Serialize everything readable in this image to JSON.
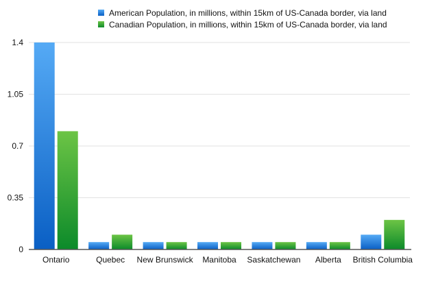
{
  "chart_data": {
    "type": "bar",
    "title": "",
    "xlabel": "",
    "ylabel": "",
    "categories": [
      "Ontario",
      "Quebec",
      "New Brunswick",
      "Manitoba",
      "Saskatchewan",
      "Alberta",
      "British Columbia"
    ],
    "series": [
      {
        "name": "American Population, in millions, within 15km of US-Canada border, via land",
        "color": "#2f7fe0",
        "values": [
          1.4,
          0.05,
          0.05,
          0.05,
          0.05,
          0.05,
          0.1
        ]
      },
      {
        "name": "Canadian Population, in millions, within 15km of US-Canada border, via land",
        "color": "#3aa83a",
        "values": [
          0.8,
          0.1,
          0.05,
          0.05,
          0.05,
          0.05,
          0.2
        ]
      }
    ],
    "ylim": [
      0,
      1.4
    ],
    "yticks": [
      "0",
      "0.35",
      "0.7",
      "1.05",
      "1.4"
    ],
    "grid": true,
    "legend": "top"
  }
}
